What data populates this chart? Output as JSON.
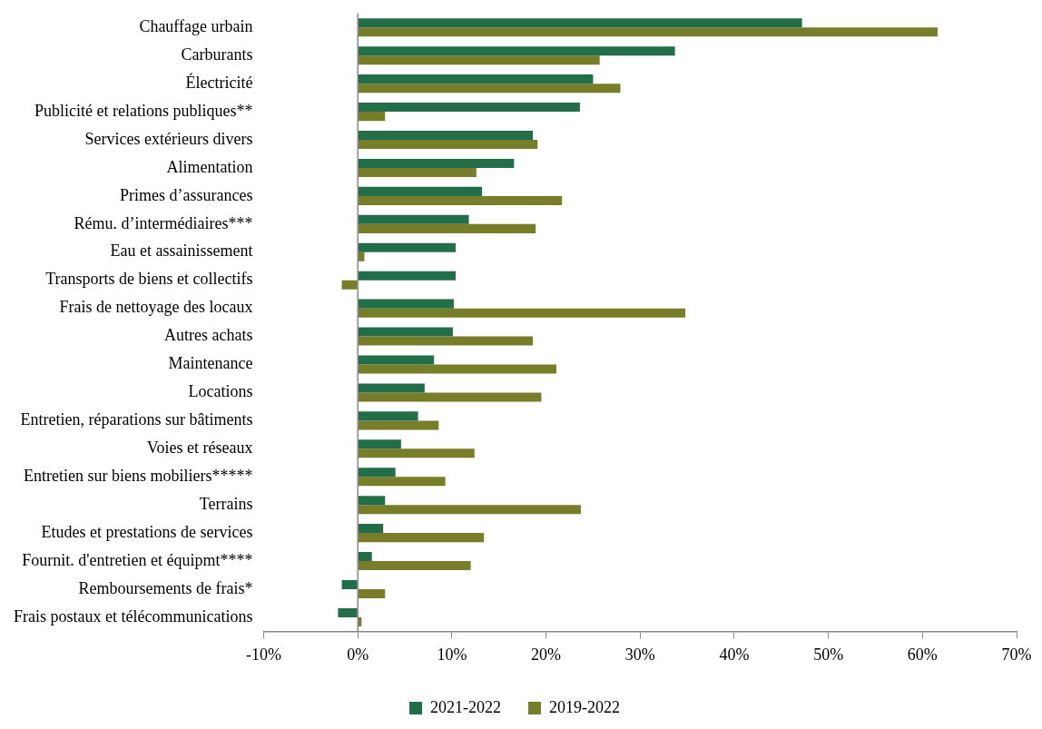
{
  "chart_data": {
    "type": "bar",
    "orientation": "horizontal",
    "categories": [
      "Chauffage urbain",
      "Carburants",
      "Électricité",
      "Publicité et relations publiques**",
      "Services extérieurs divers",
      "Alimentation",
      "Primes d’assurances",
      "Rému. d’intermédiaires***",
      "Eau et assainissement",
      "Transports de biens et collectifs",
      "Frais de nettoyage des locaux",
      "Autres achats",
      "Maintenance",
      "Locations",
      "Entretien, réparations sur bâtiments",
      "Voies et réseaux",
      "Entretien sur biens mobiliers*****",
      "Terrains",
      "Etudes et prestations de services",
      "Fournit. d'entretien et équipmt****",
      "Remboursements de frais*",
      "Frais postaux et télécommunications"
    ],
    "series": [
      {
        "name": "2021-2022",
        "color": "#226e48",
        "values": [
          47.2,
          33.7,
          25.0,
          23.6,
          18.6,
          16.6,
          13.2,
          11.8,
          10.4,
          10.4,
          10.2,
          10.1,
          8.1,
          7.1,
          6.4,
          4.6,
          4.0,
          2.9,
          2.7,
          1.5,
          -1.7,
          -2.1
        ]
      },
      {
        "name": "2019-2022",
        "color": "#777d28",
        "values": [
          61.6,
          25.7,
          27.9,
          2.9,
          19.1,
          12.6,
          21.7,
          18.9,
          0.7,
          -1.7,
          34.8,
          18.6,
          21.1,
          19.5,
          8.6,
          12.4,
          9.3,
          23.7,
          13.4,
          12.0,
          2.9,
          0.4
        ]
      }
    ],
    "xlim": [
      -10,
      70
    ],
    "xticks": [
      {
        "value": -10,
        "label": "-10%"
      },
      {
        "value": 0,
        "label": "0%"
      },
      {
        "value": 10,
        "label": "10%"
      },
      {
        "value": 20,
        "label": "20%"
      },
      {
        "value": 30,
        "label": "30%"
      },
      {
        "value": 40,
        "label": "40%"
      },
      {
        "value": 50,
        "label": "50%"
      },
      {
        "value": 60,
        "label": "60%"
      },
      {
        "value": 70,
        "label": "70%"
      }
    ],
    "grid": false,
    "ref_lines": [
      {
        "axis": "x",
        "value": 0,
        "color": "#888888"
      }
    ],
    "legend": "bottom"
  }
}
